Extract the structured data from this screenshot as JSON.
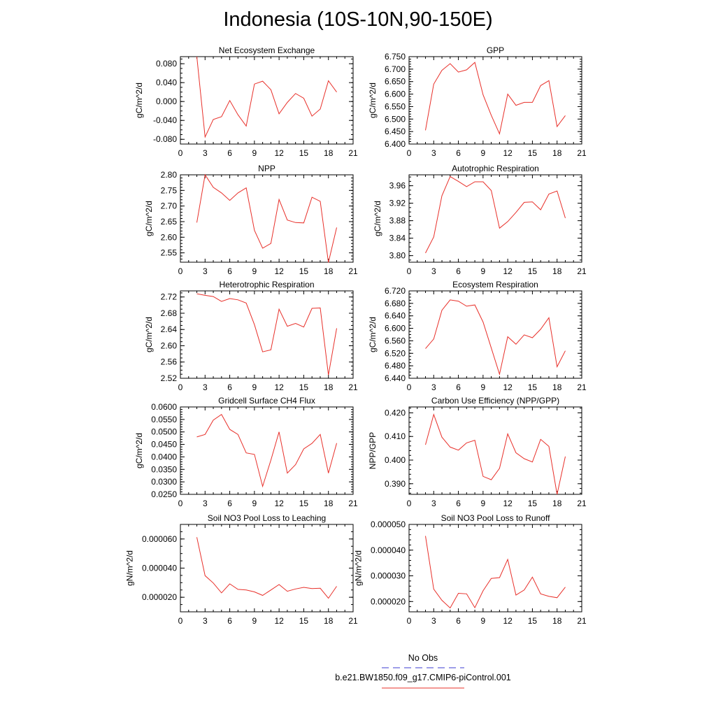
{
  "figure_title": "Indonesia (10S-10N,90-150E)",
  "legend": [
    {
      "label": "No Obs",
      "color": "#3b3bd0",
      "dash": true
    },
    {
      "label": "b.e21.BW1850.f09_g17.CMIP6-piControl.001",
      "color": "#e8302a",
      "dash": false
    }
  ],
  "chart_data": [
    {
      "type": "line",
      "title": "Net Ecosystem Exchange",
      "ylabel": "gC/m^2/d",
      "xlim": [
        0,
        21
      ],
      "xticks": [
        "0",
        "3",
        "6",
        "9",
        "12",
        "15",
        "18",
        "21"
      ],
      "ylim": [
        -0.09,
        0.095
      ],
      "yticks": [
        -0.08,
        -0.04,
        0.0,
        0.04,
        0.08
      ],
      "yticklabels": [
        "-0.080",
        "-0.040",
        "0.000",
        "0.040",
        "0.080"
      ],
      "yminor": 0.01,
      "series": [
        {
          "color": "#e8302a",
          "x": [
            2,
            3,
            4,
            5,
            6,
            7,
            8,
            9,
            10,
            11,
            12,
            13,
            14,
            15,
            16,
            17,
            18,
            19
          ],
          "y": [
            0.095,
            -0.075,
            -0.038,
            -0.032,
            0.002,
            -0.028,
            -0.052,
            0.037,
            0.043,
            0.025,
            -0.026,
            -0.002,
            0.017,
            0.007,
            -0.031,
            -0.016,
            0.044,
            0.02
          ]
        }
      ]
    },
    {
      "type": "line",
      "title": "GPP",
      "ylabel": "gC/m^2/d",
      "xlim": [
        0,
        21
      ],
      "xticks": [
        "0",
        "3",
        "6",
        "9",
        "12",
        "15",
        "18",
        "21"
      ],
      "ylim": [
        6.4,
        6.75
      ],
      "yticks": [
        6.4,
        6.45,
        6.5,
        6.55,
        6.6,
        6.65,
        6.7,
        6.75
      ],
      "yticklabels": [
        "6.400",
        "6.450",
        "6.500",
        "6.550",
        "6.600",
        "6.650",
        "6.700",
        "6.750"
      ],
      "yminor": 0.01,
      "series": [
        {
          "color": "#e8302a",
          "x": [
            2,
            3,
            4,
            5,
            6,
            7,
            8,
            9,
            10,
            11,
            12,
            13,
            14,
            15,
            16,
            17,
            18,
            19
          ],
          "y": [
            6.455,
            6.64,
            6.695,
            6.722,
            6.688,
            6.697,
            6.727,
            6.597,
            6.515,
            6.441,
            6.6,
            6.555,
            6.567,
            6.567,
            6.634,
            6.654,
            6.47,
            6.514
          ]
        }
      ]
    },
    {
      "type": "line",
      "title": "NPP",
      "ylabel": "gC/m^2/d",
      "xlim": [
        0,
        21
      ],
      "xticks": [
        "0",
        "3",
        "6",
        "9",
        "12",
        "15",
        "18",
        "21"
      ],
      "ylim": [
        2.52,
        2.8
      ],
      "yticks": [
        2.55,
        2.6,
        2.65,
        2.7,
        2.75,
        2.8
      ],
      "yticklabels": [
        "2.55",
        "2.60",
        "2.65",
        "2.70",
        "2.75",
        "2.80"
      ],
      "yminor": 0.01,
      "series": [
        {
          "color": "#e8302a",
          "x": [
            2,
            3,
            4,
            5,
            6,
            7,
            8,
            9,
            10,
            11,
            12,
            13,
            14,
            15,
            16,
            17,
            18,
            19
          ],
          "y": [
            2.647,
            2.8,
            2.76,
            2.742,
            2.718,
            2.742,
            2.758,
            2.622,
            2.565,
            2.58,
            2.721,
            2.655,
            2.647,
            2.646,
            2.728,
            2.715,
            2.519,
            2.631
          ]
        }
      ]
    },
    {
      "type": "line",
      "title": "Autotrophic Respiration",
      "ylabel": "gC/m^2/d",
      "xlim": [
        0,
        21
      ],
      "xticks": [
        "0",
        "3",
        "6",
        "9",
        "12",
        "15",
        "18",
        "21"
      ],
      "ylim": [
        3.785,
        3.985
      ],
      "yticks": [
        3.8,
        3.84,
        3.88,
        3.92,
        3.96
      ],
      "yticklabels": [
        "3.80",
        "3.84",
        "3.88",
        "3.92",
        "3.96"
      ],
      "yminor": 0.01,
      "series": [
        {
          "color": "#e8302a",
          "x": [
            2,
            3,
            4,
            5,
            6,
            7,
            8,
            9,
            10,
            11,
            12,
            13,
            14,
            15,
            16,
            17,
            18,
            19
          ],
          "y": [
            3.806,
            3.843,
            3.937,
            3.981,
            3.97,
            3.958,
            3.969,
            3.969,
            3.949,
            3.863,
            3.878,
            3.899,
            3.922,
            3.923,
            3.905,
            3.941,
            3.948,
            3.886
          ]
        }
      ]
    },
    {
      "type": "line",
      "title": "Heterotrophic Respiration",
      "ylabel": "gC/m^2/d",
      "xlim": [
        0,
        21
      ],
      "xticks": [
        "0",
        "3",
        "6",
        "9",
        "12",
        "15",
        "18",
        "21"
      ],
      "ylim": [
        2.52,
        2.735
      ],
      "yticks": [
        2.52,
        2.56,
        2.6,
        2.64,
        2.68,
        2.72
      ],
      "yticklabels": [
        "2.52",
        "2.56",
        "2.60",
        "2.64",
        "2.68",
        "2.72"
      ],
      "yminor": 0.01,
      "series": [
        {
          "color": "#e8302a",
          "x": [
            2,
            3,
            4,
            5,
            6,
            7,
            8,
            9,
            10,
            11,
            12,
            13,
            14,
            15,
            16,
            17,
            18,
            19
          ],
          "y": [
            2.728,
            2.724,
            2.721,
            2.709,
            2.716,
            2.713,
            2.705,
            2.652,
            2.585,
            2.59,
            2.69,
            2.648,
            2.655,
            2.646,
            2.692,
            2.693,
            2.528,
            2.643
          ]
        }
      ]
    },
    {
      "type": "line",
      "title": "Ecosystem Respiration",
      "ylabel": "gC/m^2/d",
      "xlim": [
        0,
        21
      ],
      "xticks": [
        "0",
        "3",
        "6",
        "9",
        "12",
        "15",
        "18",
        "21"
      ],
      "ylim": [
        6.44,
        6.72
      ],
      "yticks": [
        6.44,
        6.48,
        6.52,
        6.56,
        6.6,
        6.64,
        6.68,
        6.72
      ],
      "yticklabels": [
        "6.440",
        "6.480",
        "6.520",
        "6.560",
        "6.600",
        "6.640",
        "6.680",
        "6.720"
      ],
      "yminor": 0.01,
      "series": [
        {
          "color": "#e8302a",
          "x": [
            2,
            3,
            4,
            5,
            6,
            7,
            8,
            9,
            10,
            11,
            12,
            13,
            14,
            15,
            16,
            17,
            18,
            19
          ],
          "y": [
            6.535,
            6.566,
            6.658,
            6.691,
            6.687,
            6.671,
            6.675,
            6.62,
            6.537,
            6.453,
            6.573,
            6.549,
            6.579,
            6.57,
            6.597,
            6.634,
            6.477,
            6.528
          ]
        }
      ]
    },
    {
      "type": "line",
      "title": "Gridcell Surface CH4 Flux",
      "ylabel": "gC/m^2/d",
      "xlim": [
        0,
        21
      ],
      "xticks": [
        "0",
        "3",
        "6",
        "9",
        "12",
        "15",
        "18",
        "21"
      ],
      "ylim": [
        0.025,
        0.06
      ],
      "yticks": [
        0.025,
        0.03,
        0.035,
        0.04,
        0.045,
        0.05,
        0.055,
        0.06
      ],
      "yticklabels": [
        "0.0250",
        "0.0300",
        "0.0350",
        "0.0400",
        "0.0450",
        "0.0500",
        "0.0550",
        "0.0600"
      ],
      "yminor": 0.001,
      "series": [
        {
          "color": "#e8302a",
          "x": [
            2,
            3,
            4,
            5,
            6,
            7,
            8,
            9,
            10,
            11,
            12,
            13,
            14,
            15,
            16,
            17,
            18,
            19
          ],
          "y": [
            0.048,
            0.049,
            0.0547,
            0.057,
            0.051,
            0.049,
            0.0416,
            0.041,
            0.0282,
            0.0387,
            0.05,
            0.0335,
            0.0369,
            0.0432,
            0.0454,
            0.049,
            0.0335,
            0.0455
          ]
        }
      ]
    },
    {
      "type": "line",
      "title": "Carbon Use Efficiency (NPP/GPP)",
      "ylabel": "NPP/GPP",
      "xlim": [
        0,
        21
      ],
      "xticks": [
        "0",
        "3",
        "6",
        "9",
        "12",
        "15",
        "18",
        "21"
      ],
      "ylim": [
        0.3855,
        0.4225
      ],
      "yticks": [
        0.39,
        0.4,
        0.41,
        0.42
      ],
      "yticklabels": [
        "0.390",
        "0.400",
        "0.410",
        "0.420"
      ],
      "yminor": 0.002,
      "series": [
        {
          "color": "#e8302a",
          "x": [
            2,
            3,
            4,
            5,
            6,
            7,
            8,
            9,
            10,
            11,
            12,
            13,
            14,
            15,
            16,
            17,
            18,
            19
          ],
          "y": [
            0.4065,
            0.4193,
            0.4097,
            0.4055,
            0.4042,
            0.4073,
            0.4084,
            0.3931,
            0.3917,
            0.3965,
            0.4111,
            0.4031,
            0.4006,
            0.3992,
            0.4088,
            0.4058,
            0.3855,
            0.4015
          ]
        }
      ]
    },
    {
      "type": "line",
      "title": "Soil NO3 Pool Loss to Leaching",
      "ylabel": "gN/m^2/d",
      "xlim": [
        0,
        21
      ],
      "xticks": [
        "0",
        "3",
        "6",
        "9",
        "12",
        "15",
        "18",
        "21"
      ],
      "ylim": [
        1e-05,
        7e-05
      ],
      "yticks": [
        2e-05,
        4e-05,
        6e-05
      ],
      "yticklabels": [
        "0.000020",
        "0.000040",
        "0.000060"
      ],
      "yminor": 5e-06,
      "series": [
        {
          "color": "#e8302a",
          "x": [
            2,
            3,
            4,
            5,
            6,
            7,
            8,
            9,
            10,
            11,
            12,
            13,
            14,
            15,
            16,
            17,
            18,
            19
          ],
          "y": [
            6.12e-05,
            3.48e-05,
            2.98e-05,
            2.3e-05,
            2.92e-05,
            2.54e-05,
            2.5e-05,
            2.37e-05,
            2.13e-05,
            2.5e-05,
            2.87e-05,
            2.41e-05,
            2.57e-05,
            2.68e-05,
            2.6e-05,
            2.62e-05,
            1.93e-05,
            2.75e-05
          ]
        }
      ]
    },
    {
      "type": "line",
      "title": "Soil NO3 Pool Loss to Runoff",
      "ylabel": "gN/m^2/d",
      "xlim": [
        0,
        21
      ],
      "xticks": [
        "0",
        "3",
        "6",
        "9",
        "12",
        "15",
        "18",
        "21"
      ],
      "ylim": [
        1.6e-05,
        5e-05
      ],
      "yticks": [
        2e-05,
        3e-05,
        4e-05,
        5e-05
      ],
      "yticklabels": [
        "0.000020",
        "0.000030",
        "0.000040",
        "0.000050"
      ],
      "yminor": 2e-06,
      "series": [
        {
          "color": "#e8302a",
          "x": [
            2,
            3,
            4,
            5,
            6,
            7,
            8,
            9,
            10,
            11,
            12,
            13,
            14,
            15,
            16,
            17,
            18,
            19
          ],
          "y": [
            4.55e-05,
            2.48e-05,
            2.05e-05,
            1.75e-05,
            2.32e-05,
            2.3e-05,
            1.76e-05,
            2.42e-05,
            2.9e-05,
            2.93e-05,
            3.64e-05,
            2.25e-05,
            2.45e-05,
            2.95e-05,
            2.3e-05,
            2.2e-05,
            2.15e-05,
            2.56e-05
          ]
        }
      ]
    }
  ]
}
